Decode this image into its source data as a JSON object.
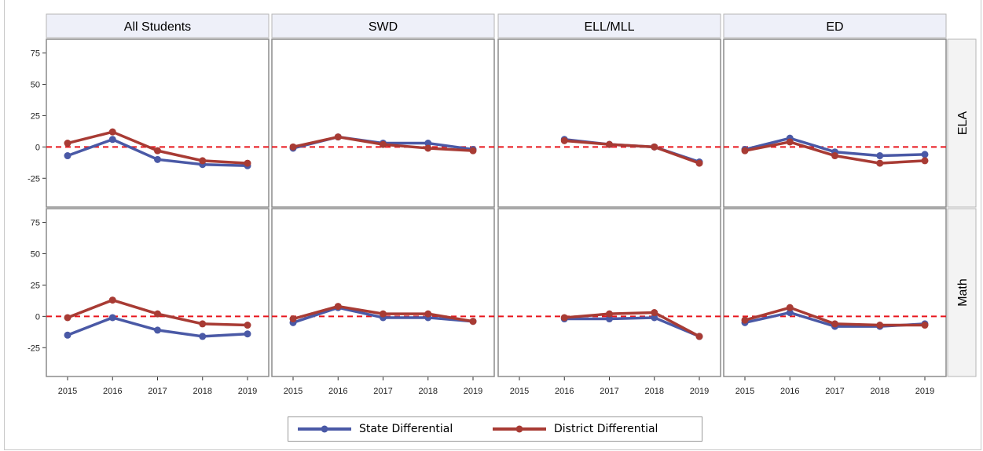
{
  "chart_data": {
    "type": "line",
    "columns": [
      "All Students",
      "SWD",
      "ELL/MLL",
      "ED"
    ],
    "rows": [
      "ELA",
      "Math"
    ],
    "x": [
      "2015",
      "2016",
      "2017",
      "2018",
      "2019"
    ],
    "y_ticks": [
      "75",
      "50",
      "25",
      "0",
      "-25"
    ],
    "ylim": [
      -48,
      86
    ],
    "reference_line": 0,
    "grid": false,
    "legend_placement": "bottom",
    "series": [
      {
        "name": "State Differential",
        "color": "#4a59a6"
      },
      {
        "name": "District Differential",
        "color": "#a83b34"
      }
    ],
    "panels": [
      {
        "row": "ELA",
        "column": "All Students",
        "state": [
          -7,
          6,
          -10,
          -14,
          -15
        ],
        "district": [
          3,
          12,
          -3,
          -11,
          -13
        ]
      },
      {
        "row": "ELA",
        "column": "SWD",
        "state": [
          -1,
          8,
          3,
          3,
          -2
        ],
        "district": [
          0,
          8,
          2,
          -1,
          -3
        ]
      },
      {
        "row": "ELA",
        "column": "ELL/MLL",
        "state": [
          null,
          6,
          2,
          0,
          -12
        ],
        "district": [
          null,
          5,
          2,
          0,
          -13
        ]
      },
      {
        "row": "ELA",
        "column": "ED",
        "state": [
          -2,
          7,
          -4,
          -7,
          -6
        ],
        "district": [
          -3,
          4,
          -7,
          -13,
          -11
        ]
      },
      {
        "row": "Math",
        "column": "All Students",
        "state": [
          -15,
          -1,
          -11,
          -16,
          -14
        ],
        "district": [
          -1,
          13,
          2,
          -6,
          -7
        ]
      },
      {
        "row": "Math",
        "column": "SWD",
        "state": [
          -5,
          7,
          -1,
          -1,
          -4
        ],
        "district": [
          -2,
          8,
          2,
          2,
          -4
        ]
      },
      {
        "row": "Math",
        "column": "ELL/MLL",
        "state": [
          null,
          -2,
          -2,
          -1,
          -16
        ],
        "district": [
          null,
          -1,
          2,
          3,
          -16
        ]
      },
      {
        "row": "Math",
        "column": "ED",
        "state": [
          -5,
          3,
          -8,
          -8,
          -6
        ],
        "district": [
          -3,
          7,
          -6,
          -7,
          -7
        ]
      }
    ]
  }
}
